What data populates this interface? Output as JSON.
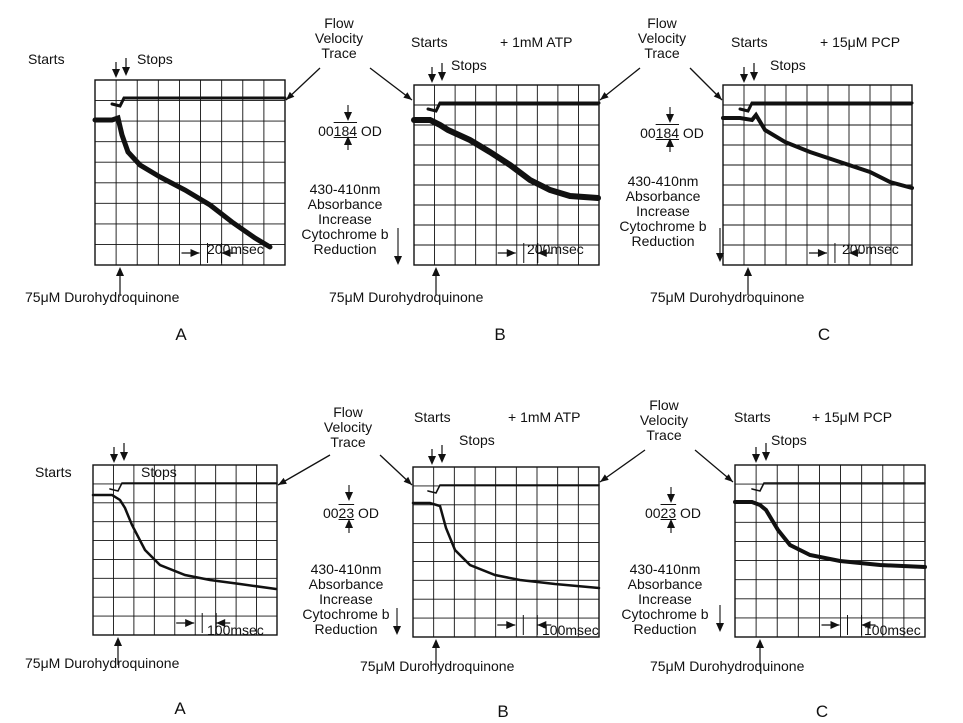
{
  "common": {
    "starts": "Starts",
    "stops": "Stops",
    "flow_trace": [
      "Flow",
      "Velocity",
      "Trace"
    ],
    "wavelength": "430-410nm",
    "absorbance": "Absorbance",
    "increase": "Increase",
    "cytochrome": "Cytochrome b",
    "reduction": "Reduction",
    "durohydroquinone": "75μM Durohydroquinone"
  },
  "rows": [
    {
      "od_prefix": "00",
      "od_value": "184",
      "od_unit": "OD",
      "time_scale": "200msec",
      "panels": [
        {
          "letter": "A",
          "condition": ""
        },
        {
          "letter": "B",
          "condition": "+ 1mM ATP"
        },
        {
          "letter": "C",
          "condition": "+ 15μM PCP"
        }
      ]
    },
    {
      "od_prefix": "00",
      "od_value": "23",
      "od_unit": "OD",
      "time_scale": "100msec",
      "panels": [
        {
          "letter": "A",
          "condition": ""
        },
        {
          "letter": "B",
          "condition": "+ 1mM ATP"
        },
        {
          "letter": "C",
          "condition": "+ 15μM PCP"
        }
      ]
    }
  ],
  "colors": {
    "ink": "#111111",
    "background": "#ffffff"
  }
}
